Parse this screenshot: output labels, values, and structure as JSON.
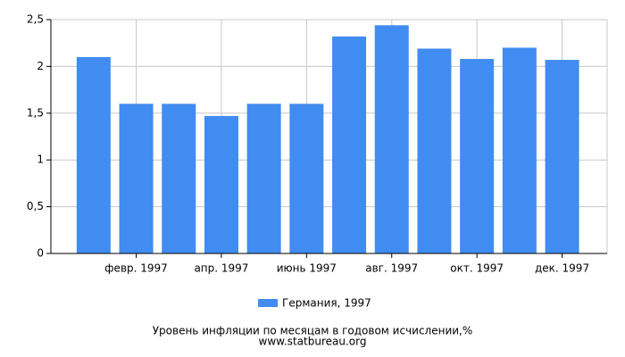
{
  "chart_data": {
    "type": "bar",
    "title": "Уровень инфляции по месяцам в годовом исчислении,%",
    "subtitle": "www.statbureau.org",
    "categories": [
      null,
      "февр. 1997",
      null,
      "апр. 1997",
      null,
      "июнь 1997",
      null,
      "авг. 1997",
      null,
      "окт. 1997",
      null,
      "дек. 1997"
    ],
    "series": [
      {
        "name": "Германия, 1997",
        "color": "#418cf0",
        "values": [
          2.1,
          1.6,
          1.6,
          1.47,
          1.6,
          1.6,
          2.32,
          2.44,
          2.19,
          2.08,
          2.2,
          2.07
        ]
      }
    ],
    "ylim": [
      0,
      2.5
    ],
    "yticks": [
      0,
      {
        "value": 0.5,
        "label": "0,5"
      },
      1,
      {
        "value": 1.5,
        "label": "1,5"
      },
      2,
      {
        "value": 2.5,
        "label": "2,5"
      }
    ],
    "grid": true
  }
}
